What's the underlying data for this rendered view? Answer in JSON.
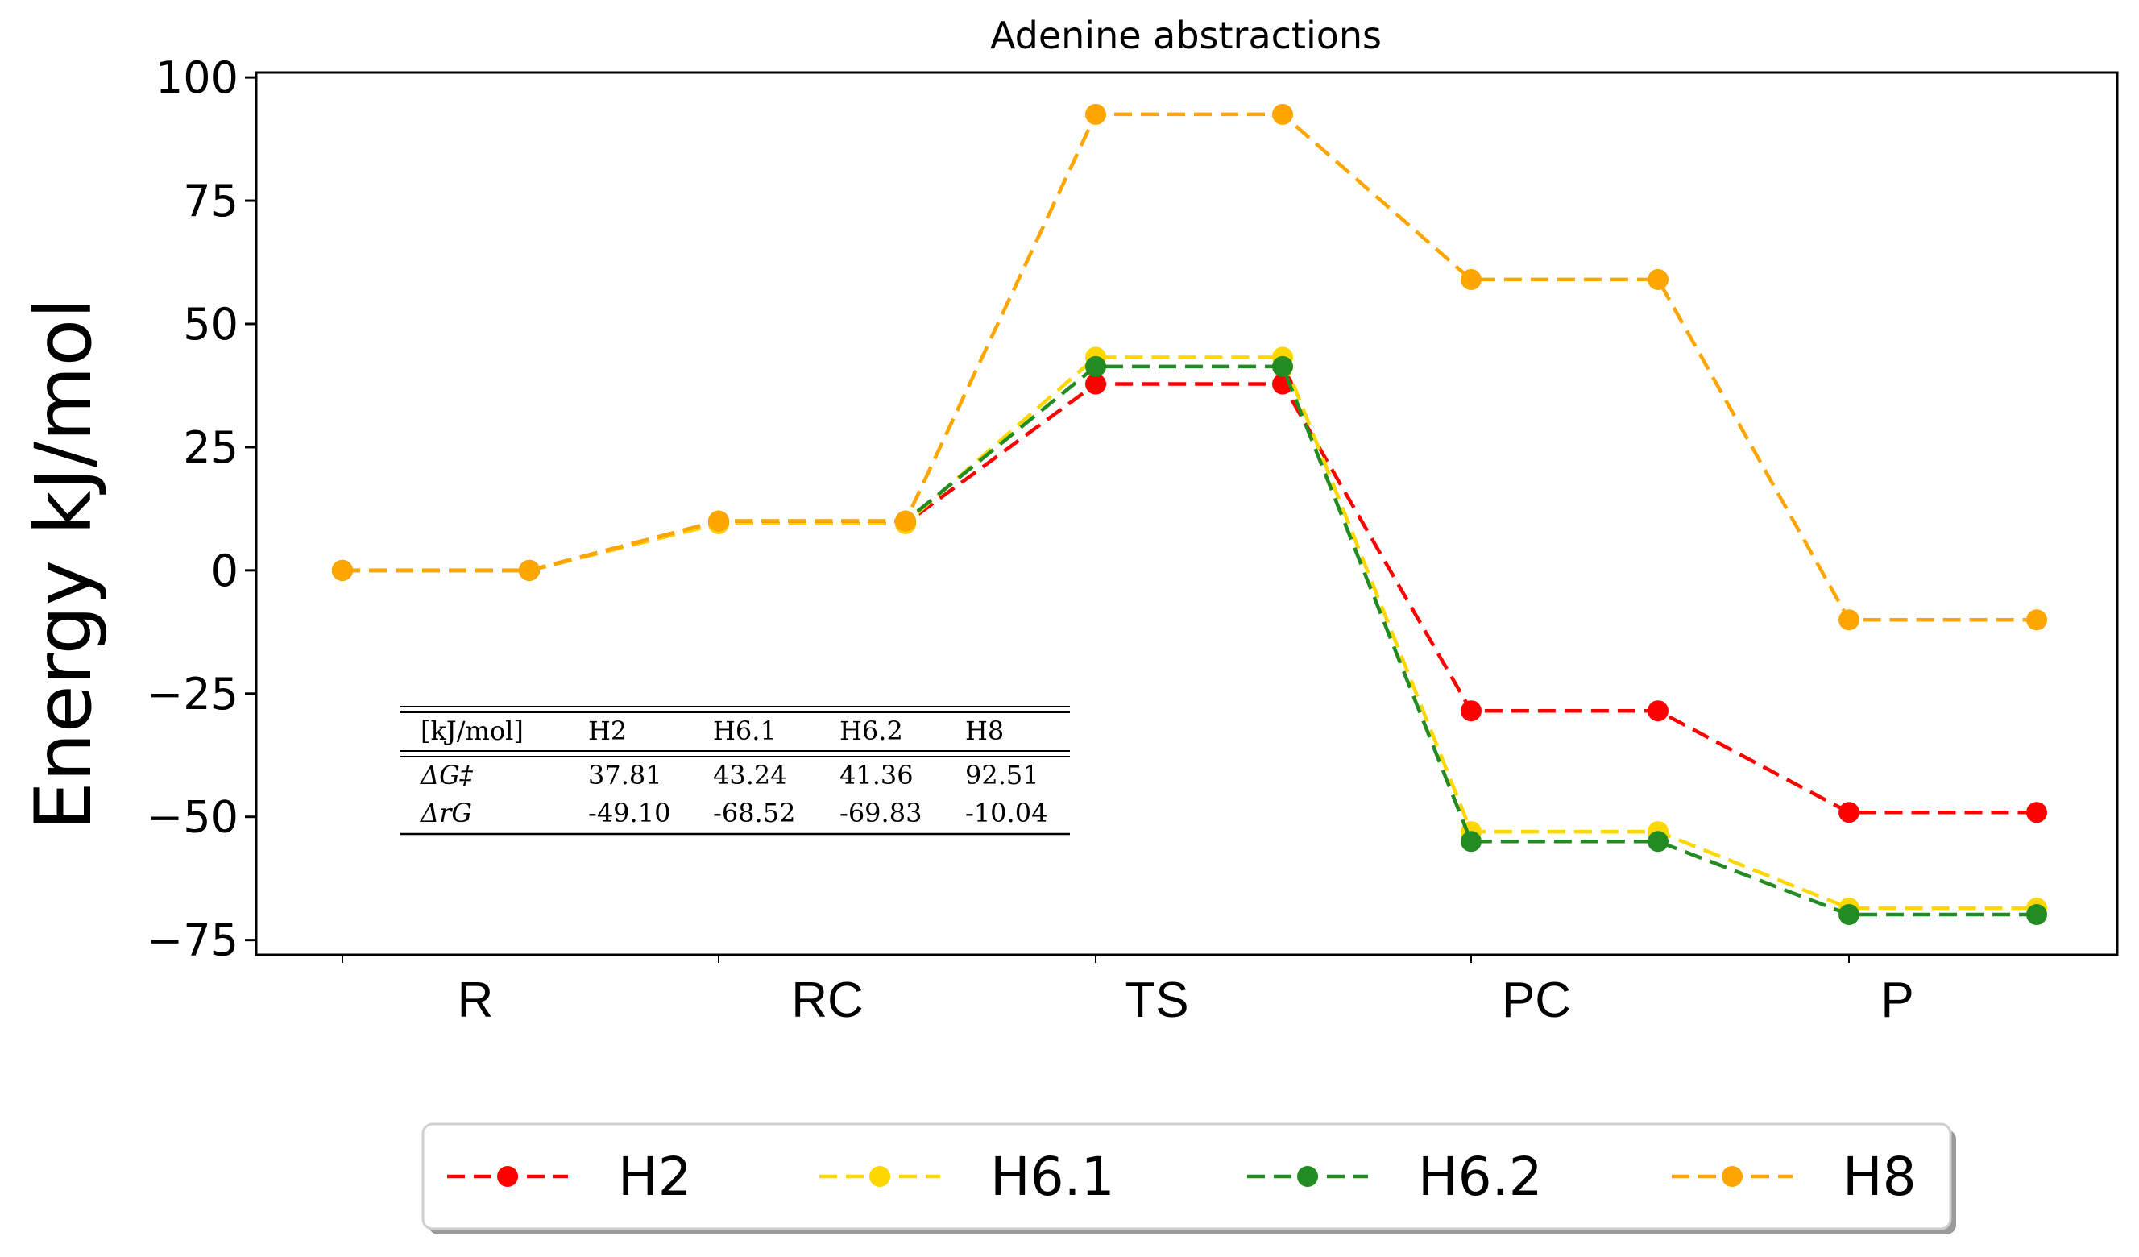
{
  "chart_data": {
    "type": "line",
    "title": "Adenine abstractions",
    "xlabel": "",
    "ylabel": "Energy kJ/mol",
    "categories": [
      "R",
      "RC",
      "TS",
      "PC",
      "P"
    ],
    "ylim": [
      -78,
      101
    ],
    "yticks": [
      100,
      75,
      50,
      25,
      0,
      -25,
      -50,
      -75
    ],
    "ytick_labels": [
      "100",
      "75",
      "50",
      "25",
      "0",
      "−25",
      "−50",
      "−75"
    ],
    "grid": false,
    "legend_position": "bottom",
    "series": [
      {
        "name": "H2",
        "color": "#ff0000",
        "values": [
          0,
          9.5,
          37.81,
          -28.5,
          -49.1
        ]
      },
      {
        "name": "H6.1",
        "color": "#ffd700",
        "values": [
          0,
          9.5,
          43.24,
          -53.0,
          -68.52
        ]
      },
      {
        "name": "H6.2",
        "color": "#228b22",
        "values": [
          0,
          10.0,
          41.36,
          -55.0,
          -69.83
        ]
      },
      {
        "name": "H8",
        "color": "#ffa500",
        "values": [
          0,
          10.0,
          92.51,
          59.0,
          -10.04
        ]
      }
    ],
    "inset_table": {
      "header": [
        "[kJ/mol]",
        "H2",
        "H6.1",
        "H6.2",
        "H8"
      ],
      "rows": [
        {
          "label": "ΔG‡",
          "values": [
            "37.81",
            "43.24",
            "41.36",
            "92.51"
          ]
        },
        {
          "label": "ΔrG",
          "values": [
            "-49.10",
            "-68.52",
            "-69.83",
            "-10.04"
          ]
        }
      ]
    }
  }
}
